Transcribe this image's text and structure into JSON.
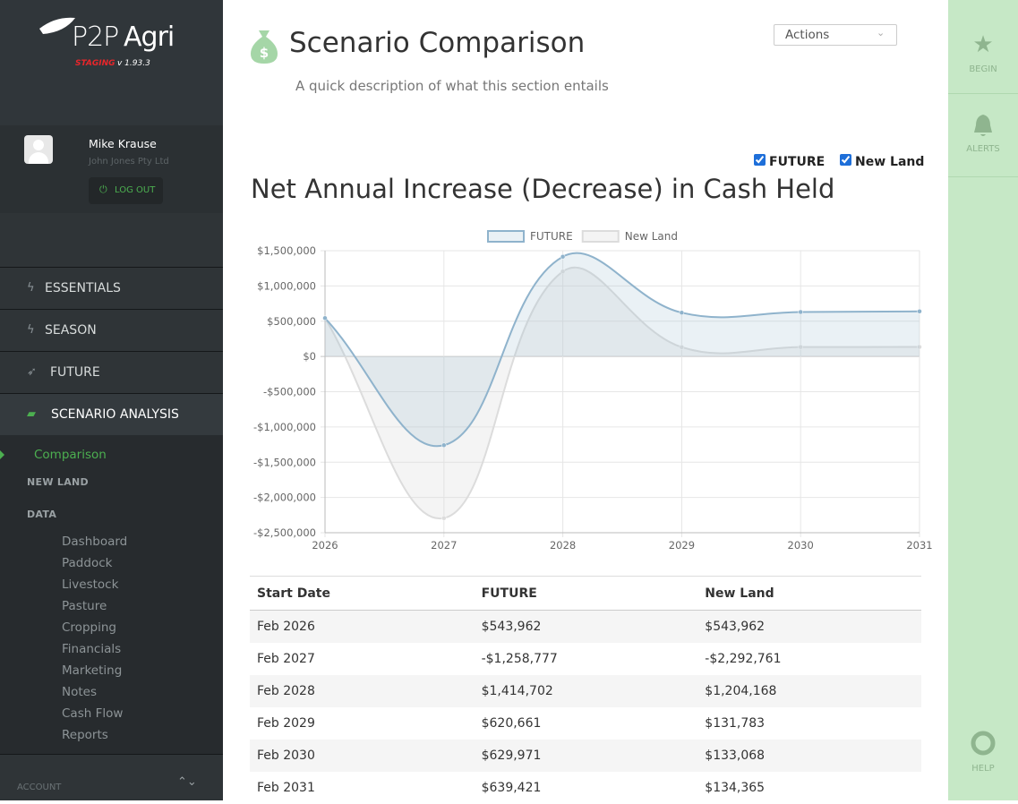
{
  "sidebar": {
    "logo": {
      "brand_p2p": "P2P",
      "brand_agri": "Agri",
      "env": "STAGING",
      "version": "v 1.93.3"
    },
    "user": {
      "name": "Mike Krause",
      "org": "John Jones Pty Ltd",
      "logout": "LOG OUT"
    },
    "menu": [
      "ESSENTIALS",
      "SEASON",
      "FUTURE",
      "SCENARIO ANALYSIS"
    ],
    "submenu": {
      "active": "Comparison",
      "sections": [
        "NEW LAND",
        "DATA"
      ],
      "items": [
        "Dashboard",
        "Paddock",
        "Livestock",
        "Pasture",
        "Cropping",
        "Financials",
        "Marketing",
        "Notes",
        "Cash Flow",
        "Reports"
      ]
    },
    "account": "ACCOUNT"
  },
  "header": {
    "title": "Scenario Comparison",
    "description": "A quick description of what this section entails",
    "actions": "Actions"
  },
  "toggles": [
    "FUTURE",
    "New Land"
  ],
  "chart_data": {
    "type": "line",
    "title": "Net Annual Increase (Decrease) in Cash Held",
    "x": [
      2026,
      2027,
      2028,
      2029,
      2030,
      2031
    ],
    "xlim": [
      2026,
      2031
    ],
    "xticks": [
      2026,
      2027,
      2028,
      2029,
      2030,
      2031
    ],
    "ylim": [
      -2500000,
      1500000
    ],
    "yticks": [
      {
        "value": -2500000,
        "label": "-$2,500,000"
      },
      {
        "value": -2000000,
        "label": "-$2,000,000"
      },
      {
        "value": -1500000,
        "label": "-$1,500,000"
      },
      {
        "value": -1000000,
        "label": "-$1,000,000"
      },
      {
        "value": -500000,
        "label": "-$500,000"
      },
      {
        "value": 0,
        "label": "$0"
      },
      {
        "value": 500000,
        "label": "$500,000"
      },
      {
        "value": 1000000,
        "label": "$1,000,000"
      },
      {
        "value": 1500000,
        "label": "$1,500,000"
      }
    ],
    "grid": true,
    "legend": "top",
    "series": [
      {
        "name": "FUTURE",
        "color": "#8fb3cc",
        "fill": "rgba(151,187,205,0.2)",
        "values": [
          543962,
          -1258777,
          1414702,
          620661,
          629971,
          639421
        ]
      },
      {
        "name": "New Land",
        "color": "#dcdcdc",
        "fill": "rgba(220,220,220,0.3)",
        "values": [
          543962,
          -2292761,
          1204168,
          131783,
          133068,
          134365
        ]
      }
    ]
  },
  "table": {
    "header": [
      "Start Date",
      "FUTURE",
      "New Land"
    ],
    "rows": [
      [
        "Feb 2026",
        "$543,962",
        "$543,962"
      ],
      [
        "Feb 2027",
        "-$1,258,777",
        "-$2,292,761"
      ],
      [
        "Feb 2028",
        "$1,414,702",
        "$1,204,168"
      ],
      [
        "Feb 2029",
        "$620,661",
        "$131,783"
      ],
      [
        "Feb 2030",
        "$629,971",
        "$133,068"
      ],
      [
        "Feb 2031",
        "$639,421",
        "$134,365"
      ]
    ]
  },
  "right_bar": [
    "BEGIN",
    "ALERTS",
    "HELP"
  ]
}
